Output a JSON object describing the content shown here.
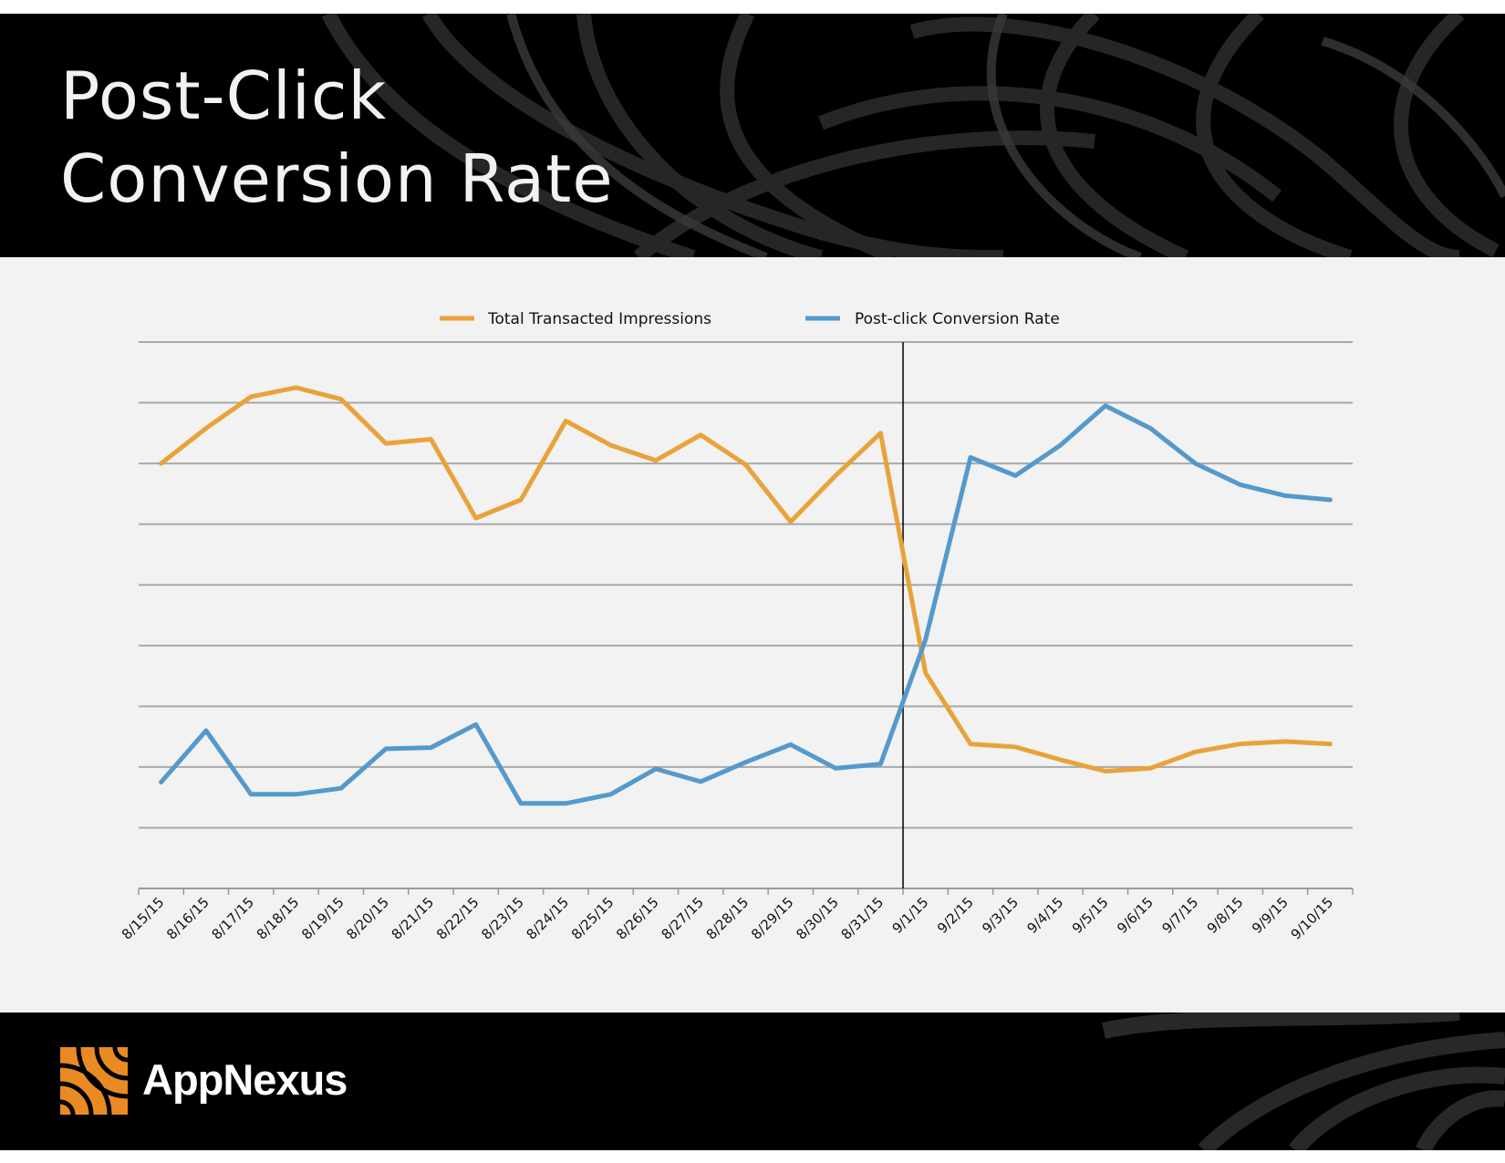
{
  "header": {
    "title_line1": "Post-Click",
    "title_line2": "Conversion Rate"
  },
  "footer": {
    "brand": "AppNexus"
  },
  "colors": {
    "background": "#000000",
    "panel": "#f1f2f1",
    "impressions": "#e9a23b",
    "conversion": "#5599cc",
    "logo": "#e98a22"
  },
  "chart_data": {
    "type": "line",
    "title": "",
    "xlabel": "",
    "ylabel": "",
    "ylim": [
      0,
      9
    ],
    "grid": true,
    "legend_position": "top",
    "marker_at": "9/1/15",
    "categories": [
      "8/15/15",
      "8/16/15",
      "8/17/15",
      "8/18/15",
      "8/19/15",
      "8/20/15",
      "8/21/15",
      "8/22/15",
      "8/23/15",
      "8/24/15",
      "8/25/15",
      "8/26/15",
      "8/27/15",
      "8/28/15",
      "8/29/15",
      "8/30/15",
      "8/31/15",
      "9/1/15",
      "9/2/15",
      "9/3/15",
      "9/4/15",
      "9/5/15",
      "9/6/15",
      "9/7/15",
      "9/8/15",
      "9/9/15",
      "9/10/15"
    ],
    "series": [
      {
        "name": "Total Transacted Impressions",
        "color": "#e9a23b",
        "values": [
          7.0,
          7.58,
          8.1,
          8.25,
          8.06,
          7.33,
          7.4,
          6.1,
          6.4,
          7.7,
          7.3,
          7.05,
          7.47,
          6.98,
          6.04,
          6.8,
          7.5,
          3.55,
          2.38,
          2.33,
          2.12,
          1.93,
          1.98,
          2.25,
          2.38,
          2.42,
          2.38
        ]
      },
      {
        "name": "Post-click Conversion Rate",
        "color": "#5599cc",
        "values": [
          1.75,
          2.6,
          1.55,
          1.55,
          1.65,
          2.3,
          2.32,
          2.7,
          1.4,
          1.4,
          1.55,
          1.97,
          1.76,
          2.08,
          2.37,
          1.98,
          2.05,
          4.1,
          7.1,
          6.8,
          7.3,
          7.95,
          7.58,
          7.0,
          6.65,
          6.47,
          6.4
        ]
      }
    ]
  }
}
